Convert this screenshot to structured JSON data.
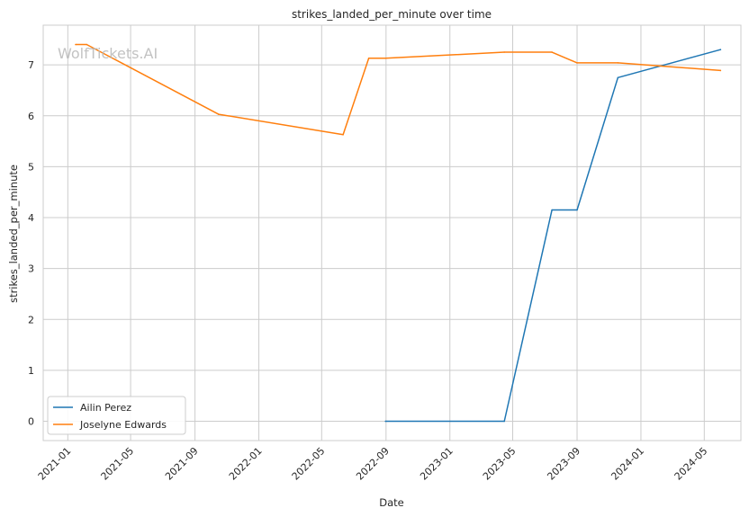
{
  "watermark": "WolfTickets.AI",
  "chart_data": {
    "type": "line",
    "title": "strikes_landed_per_minute over time",
    "xlabel": "Date",
    "ylabel": "strikes_landed_per_minute",
    "x_type": "date",
    "xlim": [
      "2020-11-15",
      "2024-07-10"
    ],
    "ylim": [
      -0.38,
      7.78
    ],
    "x_ticks": [
      "2021-01",
      "2021-05",
      "2021-09",
      "2022-01",
      "2022-05",
      "2022-09",
      "2023-01",
      "2023-05",
      "2023-09",
      "2024-01",
      "2024-05"
    ],
    "y_ticks": [
      0,
      1,
      2,
      3,
      4,
      5,
      6,
      7
    ],
    "grid": true,
    "legend_position": "lower-left",
    "series": [
      {
        "name": "Ailin Perez",
        "color": "#1f77b4",
        "points": [
          {
            "x": "2022-08-31",
            "y": 0.0
          },
          {
            "x": "2023-04-15",
            "y": 0.0
          },
          {
            "x": "2023-07-15",
            "y": 4.15
          },
          {
            "x": "2023-09-01",
            "y": 4.15
          },
          {
            "x": "2023-11-18",
            "y": 6.75
          },
          {
            "x": "2024-06-01",
            "y": 7.3
          }
        ]
      },
      {
        "name": "Joselyne Edwards",
        "color": "#ff7f0e",
        "points": [
          {
            "x": "2021-01-16",
            "y": 7.4
          },
          {
            "x": "2021-02-06",
            "y": 7.4
          },
          {
            "x": "2021-10-16",
            "y": 6.03
          },
          {
            "x": "2022-06-11",
            "y": 5.63
          },
          {
            "x": "2022-07-30",
            "y": 7.13
          },
          {
            "x": "2022-08-31",
            "y": 7.13
          },
          {
            "x": "2023-04-15",
            "y": 7.25
          },
          {
            "x": "2023-07-15",
            "y": 7.25
          },
          {
            "x": "2023-09-01",
            "y": 7.04
          },
          {
            "x": "2023-11-18",
            "y": 7.04
          },
          {
            "x": "2024-06-01",
            "y": 6.89
          }
        ]
      }
    ]
  }
}
